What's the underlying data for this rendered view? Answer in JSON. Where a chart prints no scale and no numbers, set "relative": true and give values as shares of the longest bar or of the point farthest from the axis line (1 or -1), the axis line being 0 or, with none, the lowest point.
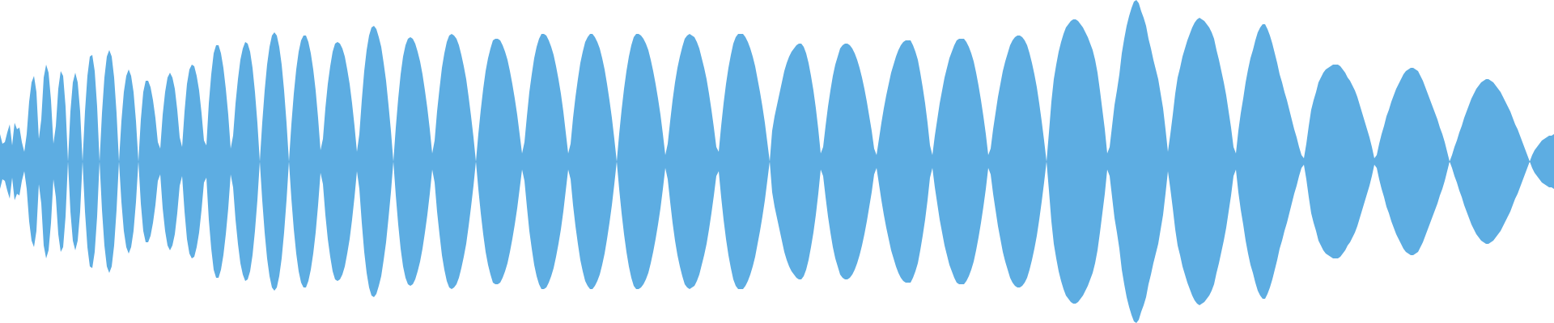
{
  "chart_data": {
    "type": "area",
    "relative": true,
    "categories": [
      null,
      null,
      null,
      null,
      null,
      null,
      null,
      null,
      null,
      null,
      null,
      null,
      null,
      null,
      null,
      null,
      null,
      null,
      null,
      null,
      null,
      null,
      null,
      null,
      null,
      null,
      null,
      null,
      null,
      null,
      null,
      null,
      null,
      null,
      null,
      null,
      null,
      null,
      null,
      null,
      null,
      null,
      null,
      null,
      null,
      null,
      null,
      null,
      null,
      null,
      null,
      null,
      null,
      null,
      null,
      null,
      null,
      null,
      null,
      null,
      null,
      null,
      null,
      null,
      null,
      null,
      null,
      null,
      null,
      null,
      null,
      null,
      null,
      null,
      null,
      null,
      null,
      null,
      null,
      null,
      null,
      null,
      null,
      null,
      null,
      null,
      null,
      null,
      null,
      null,
      null,
      null,
      null,
      null,
      null,
      null,
      null,
      null,
      null,
      null,
      null,
      null,
      null,
      null,
      null,
      null,
      null,
      null,
      null,
      null,
      null,
      null,
      null,
      null,
      null,
      null,
      null,
      null,
      null,
      null,
      null,
      null,
      null,
      null,
      null,
      null,
      null,
      null,
      null,
      null,
      null,
      null,
      null,
      null,
      null,
      null,
      null,
      null,
      null,
      null,
      null,
      null,
      null,
      null,
      null,
      null,
      null,
      null,
      null,
      null,
      null,
      null,
      null,
      null,
      null,
      null,
      null,
      null,
      null,
      null,
      null,
      null,
      null,
      null,
      null,
      null,
      null,
      null,
      null,
      null,
      null,
      null,
      null,
      null,
      null,
      null,
      null,
      null,
      null,
      null,
      null,
      null,
      null,
      null,
      null,
      null,
      null,
      null,
      null,
      null,
      null,
      null,
      null,
      null,
      null,
      null,
      null,
      null,
      null,
      null,
      null,
      null,
      null,
      null,
      null,
      null,
      null,
      null,
      null,
      null,
      null,
      null,
      null,
      null,
      null,
      null,
      null,
      null,
      null,
      null,
      null,
      null,
      null,
      null,
      null,
      null,
      null,
      null,
      null,
      null,
      null,
      null,
      null,
      null,
      null,
      null,
      null,
      null,
      null,
      null,
      null,
      null,
      null,
      null,
      null,
      null,
      null,
      null,
      null,
      null,
      null,
      null,
      null,
      null,
      null,
      null,
      null,
      null,
      null,
      null,
      null,
      null,
      null,
      null,
      null,
      null,
      null,
      null,
      null,
      null,
      null,
      null,
      null,
      null,
      null,
      null,
      null,
      null,
      null,
      null,
      null,
      null,
      null,
      null,
      null,
      null,
      null,
      null,
      null,
      null,
      null,
      null,
      null,
      null,
      null,
      null,
      null,
      null,
      null,
      null,
      null,
      null,
      null,
      null,
      null,
      null,
      null,
      null,
      null,
      null,
      null,
      null,
      null,
      null,
      null,
      null,
      null,
      null,
      null,
      null,
      null,
      null,
      null,
      null,
      null,
      null,
      null,
      null,
      null,
      null,
      null,
      null,
      null,
      null,
      null,
      null,
      null,
      null,
      null,
      null,
      null,
      null,
      null,
      null,
      null,
      null,
      null,
      null,
      null,
      null,
      null,
      null,
      null,
      null,
      null,
      null,
      null,
      null,
      null,
      null,
      null,
      null,
      null,
      null,
      null,
      null,
      null,
      null,
      null,
      null,
      null,
      null,
      null,
      null,
      null,
      null,
      null,
      null,
      null,
      null,
      null,
      null,
      null,
      null,
      null,
      null,
      null,
      null,
      null,
      null,
      null,
      null,
      null,
      null,
      null,
      null,
      null,
      null,
      null,
      null,
      null,
      null,
      null,
      null,
      null,
      null,
      null,
      null,
      null,
      null,
      null,
      null,
      null,
      null,
      null,
      null,
      null,
      null,
      null,
      null,
      null,
      null,
      null,
      null,
      null,
      null,
      null,
      null,
      null,
      null,
      null,
      null,
      null,
      null,
      null,
      null,
      null,
      null,
      null,
      null,
      null,
      null,
      null,
      null,
      null,
      null,
      null,
      null,
      null,
      null,
      null,
      null,
      null,
      null,
      null,
      null,
      null,
      null,
      null,
      null,
      null,
      null,
      null,
      null,
      null,
      null,
      null,
      null,
      null,
      null,
      null,
      null,
      null,
      null,
      null,
      null,
      null,
      null,
      null,
      null,
      null,
      null,
      null,
      null,
      null,
      null,
      null,
      null,
      null,
      null,
      null,
      null,
      null,
      null,
      null,
      null,
      null,
      null,
      null,
      null,
      null,
      null,
      null,
      null,
      null,
      null,
      null,
      null,
      null,
      null,
      null,
      null,
      null,
      null,
      null,
      null,
      null,
      null,
      null,
      null,
      null,
      null,
      null,
      null,
      null,
      null,
      null,
      null,
      null,
      null,
      null,
      null,
      null,
      null,
      null,
      null,
      null,
      null,
      null,
      null,
      null,
      null,
      null,
      null,
      null,
      null,
      null,
      null,
      null,
      null,
      null,
      null,
      null,
      null,
      null,
      null,
      null,
      null,
      null,
      null,
      null,
      null,
      null,
      null,
      null,
      null,
      null,
      null,
      null,
      null,
      null,
      null,
      null,
      null,
      null,
      null,
      null,
      null,
      null,
      null,
      null,
      null,
      null,
      null,
      null,
      null,
      null,
      null,
      null,
      null,
      null,
      null,
      null,
      null,
      null,
      null,
      null,
      null,
      null,
      null,
      null,
      null,
      null,
      null,
      null,
      null,
      null,
      null,
      null,
      null,
      null,
      null,
      null,
      null,
      null,
      null,
      null,
      null,
      null,
      null,
      null,
      null,
      null,
      null,
      null,
      null,
      null,
      null,
      null,
      null,
      null,
      null,
      null,
      null,
      null,
      null,
      null,
      null,
      null,
      null,
      null
    ],
    "series": [
      {
        "color": "#5dade2",
        "values": [
          0.17,
          0.11,
          0.12,
          0.18,
          0.23,
          0.1,
          0.24,
          0.2,
          0.21,
          0.12,
          0.06,
          0.17,
          0.37,
          0.49,
          0.53,
          0.43,
          0.14,
          0.26,
          0.52,
          0.6,
          0.55,
          0.38,
          0.11,
          0.22,
          0.45,
          0.56,
          0.53,
          0.34,
          0,
          0.31,
          0.49,
          0.55,
          0.49,
          0.31,
          0,
          0.31,
          0.53,
          0.65,
          0.66,
          0.56,
          0.34,
          0,
          0.3,
          0.52,
          0.65,
          0.69,
          0.65,
          0.52,
          0.3,
          0,
          0.25,
          0.43,
          0.53,
          0.57,
          0.53,
          0.43,
          0.25,
          0,
          0.26,
          0.43,
          0.5,
          0.5,
          0.46,
          0.38,
          0.27,
          0.12,
          0.08,
          0.29,
          0.43,
          0.52,
          0.55,
          0.52,
          0.45,
          0.32,
          0.15,
          0.09,
          0.31,
          0.48,
          0.57,
          0.6,
          0.59,
          0.53,
          0.44,
          0.3,
          0.13,
          0.1,
          0.36,
          0.54,
          0.67,
          0.72,
          0.72,
          0.67,
          0.58,
          0.45,
          0.29,
          0.08,
          0.16,
          0.36,
          0.51,
          0.63,
          0.7,
          0.74,
          0.73,
          0.68,
          0.58,
          0.43,
          0.24,
          0,
          0.24,
          0.44,
          0.6,
          0.71,
          0.78,
          0.8,
          0.78,
          0.71,
          0.6,
          0.44,
          0.24,
          0,
          0.23,
          0.42,
          0.57,
          0.68,
          0.75,
          0.78,
          0.78,
          0.74,
          0.67,
          0.57,
          0.44,
          0.27,
          0.07,
          0.14,
          0.33,
          0.48,
          0.59,
          0.68,
          0.73,
          0.74,
          0.73,
          0.7,
          0.65,
          0.57,
          0.48,
          0.36,
          0.22,
          0.06,
          0.17,
          0.38,
          0.56,
          0.69,
          0.78,
          0.83,
          0.84,
          0.82,
          0.77,
          0.71,
          0.61,
          0.5,
          0.35,
          0.19,
          0,
          0.21,
          0.39,
          0.54,
          0.65,
          0.72,
          0.76,
          0.77,
          0.76,
          0.73,
          0.68,
          0.62,
          0.54,
          0.44,
          0.33,
          0.2,
          0.05,
          0.13,
          0.31,
          0.45,
          0.58,
          0.67,
          0.74,
          0.78,
          0.79,
          0.78,
          0.76,
          0.72,
          0.66,
          0.59,
          0.51,
          0.4,
          0.28,
          0.15,
          0,
          0.17,
          0.32,
          0.45,
          0.56,
          0.64,
          0.7,
          0.75,
          0.76,
          0.76,
          0.75,
          0.72,
          0.68,
          0.63,
          0.56,
          0.48,
          0.39,
          0.29,
          0.17,
          0.05,
          0.12,
          0.28,
          0.43,
          0.54,
          0.64,
          0.71,
          0.76,
          0.79,
          0.79,
          0.78,
          0.75,
          0.71,
          0.66,
          0.59,
          0.51,
          0.42,
          0.31,
          0.18,
          0.05,
          0.11,
          0.27,
          0.4,
          0.51,
          0.61,
          0.68,
          0.74,
          0.77,
          0.79,
          0.79,
          0.77,
          0.74,
          0.7,
          0.64,
          0.57,
          0.48,
          0.38,
          0.27,
          0.14,
          0,
          0.17,
          0.32,
          0.45,
          0.56,
          0.65,
          0.72,
          0.77,
          0.79,
          0.79,
          0.78,
          0.76,
          0.73,
          0.69,
          0.63,
          0.56,
          0.48,
          0.39,
          0.29,
          0.17,
          0.04,
          0.11,
          0.25,
          0.38,
          0.49,
          0.58,
          0.65,
          0.71,
          0.76,
          0.78,
          0.79,
          0.78,
          0.77,
          0.74,
          0.7,
          0.64,
          0.58,
          0.51,
          0.42,
          0.32,
          0.21,
          0.09,
          0.06,
          0.22,
          0.36,
          0.48,
          0.58,
          0.66,
          0.73,
          0.77,
          0.79,
          0.79,
          0.79,
          0.77,
          0.74,
          0.7,
          0.65,
          0.59,
          0.51,
          0.43,
          0.34,
          0.24,
          0.12,
          0,
          0.19,
          0.28,
          0.35,
          0.42,
          0.49,
          0.56,
          0.61,
          0.65,
          0.68,
          0.7,
          0.72,
          0.73,
          0.73,
          0.71,
          0.67,
          0.61,
          0.53,
          0.44,
          0.33,
          0.2,
          0.05,
          0.09,
          0.22,
          0.34,
          0.44,
          0.53,
          0.6,
          0.65,
          0.7,
          0.72,
          0.73,
          0.73,
          0.72,
          0.7,
          0.67,
          0.63,
          0.58,
          0.52,
          0.45,
          0.37,
          0.28,
          0.19,
          0.08,
          0.04,
          0.14,
          0.24,
          0.33,
          0.41,
          0.48,
          0.55,
          0.6,
          0.65,
          0.69,
          0.72,
          0.74,
          0.75,
          0.75,
          0.75,
          0.72,
          0.68,
          0.63,
          0.55,
          0.46,
          0.36,
          0.24,
          0.1,
          0.04,
          0.16,
          0.26,
          0.36,
          0.44,
          0.52,
          0.58,
          0.64,
          0.68,
          0.72,
          0.75,
          0.76,
          0.76,
          0.76,
          0.74,
          0.71,
          0.67,
          0.62,
          0.55,
          0.47,
          0.38,
          0.28,
          0.17,
          0.04,
          0.08,
          0.2,
          0.3,
          0.4,
          0.48,
          0.56,
          0.62,
          0.67,
          0.72,
          0.75,
          0.77,
          0.78,
          0.78,
          0.77,
          0.75,
          0.72,
          0.67,
          0.61,
          0.54,
          0.46,
          0.36,
          0.25,
          0.13,
          0,
          0.18,
          0.37,
          0.51,
          0.6,
          0.68,
          0.74,
          0.79,
          0.83,
          0.85,
          0.87,
          0.88,
          0.88,
          0.87,
          0.85,
          0.83,
          0.8,
          0.77,
          0.73,
          0.69,
          0.63,
          0.55,
          0.44,
          0.32,
          0.2,
          0.05,
          0.09,
          0.22,
          0.35,
          0.44,
          0.54,
          0.67,
          0.76,
          0.84,
          0.9,
          0.95,
          0.99,
          1,
          0.98,
          0.93,
          0.89,
          0.84,
          0.76,
          0.7,
          0.63,
          0.57,
          0.51,
          0.42,
          0.33,
          0.2,
          0.06,
          0.17,
          0.29,
          0.42,
          0.52,
          0.58,
          0.65,
          0.7,
          0.75,
          0.79,
          0.83,
          0.86,
          0.88,
          0.89,
          0.88,
          0.87,
          0.85,
          0.83,
          0.8,
          0.76,
          0.69,
          0.63,
          0.56,
          0.49,
          0.41,
          0.31,
          0.21,
          0.09,
          0.05,
          0.19,
          0.3,
          0.39,
          0.49,
          0.57,
          0.64,
          0.69,
          0.75,
          0.8,
          0.83,
          0.85,
          0.85,
          0.82,
          0.78,
          0.73,
          0.67,
          0.61,
          0.54,
          0.49,
          0.43,
          0.38,
          0.32,
          0.26,
          0.2,
          0.15,
          0.09,
          0.04,
          0.02,
          0.11,
          0.22,
          0.32,
          0.38,
          0.43,
          0.49,
          0.52,
          0.55,
          0.57,
          0.58,
          0.59,
          0.6,
          0.6,
          0.6,
          0.59,
          0.57,
          0.55,
          0.52,
          0.5,
          0.47,
          0.44,
          0.4,
          0.35,
          0.3,
          0.25,
          0.2,
          0.15,
          0.09,
          0.02,
          0.04,
          0.11,
          0.17,
          0.22,
          0.28,
          0.32,
          0.37,
          0.41,
          0.45,
          0.48,
          0.51,
          0.54,
          0.56,
          0.57,
          0.58,
          0.58,
          0.57,
          0.56,
          0.53,
          0.5,
          0.46,
          0.42,
          0.38,
          0.34,
          0.3,
          0.26,
          0.21,
          0.17,
          0.12,
          0.06,
          0,
          0.04,
          0.09,
          0.13,
          0.18,
          0.22,
          0.27,
          0.31,
          0.35,
          0.39,
          0.42,
          0.45,
          0.47,
          0.49,
          0.5,
          0.51,
          0.51,
          0.5,
          0.49,
          0.47,
          0.45,
          0.43,
          0.4,
          0.37,
          0.34,
          0.31,
          0.27,
          0.23,
          0.2,
          0.16,
          0.12,
          0.08,
          0.04,
          0,
          0.04,
          0.07,
          0.09,
          0.11,
          0.13,
          0.14,
          0.15,
          0.16,
          0.16,
          0.17
        ]
      },
      {
        "color": "#5dade2",
        "values": [
          -0.17,
          -0.11,
          -0.12,
          -0.18,
          -0.23,
          -0.1,
          -0.24,
          -0.2,
          -0.21,
          -0.12,
          -0.06,
          -0.17,
          -0.37,
          -0.49,
          -0.53,
          -0.43,
          -0.14,
          -0.26,
          -0.52,
          -0.6,
          -0.55,
          -0.38,
          -0.11,
          -0.22,
          -0.45,
          -0.56,
          -0.53,
          -0.34,
          0,
          -0.31,
          -0.49,
          -0.55,
          -0.49,
          -0.31,
          0,
          -0.31,
          -0.53,
          -0.65,
          -0.66,
          -0.56,
          -0.34,
          0,
          -0.3,
          -0.52,
          -0.65,
          -0.69,
          -0.65,
          -0.52,
          -0.3,
          0,
          -0.25,
          -0.43,
          -0.53,
          -0.57,
          -0.53,
          -0.43,
          -0.25,
          0,
          -0.26,
          -0.43,
          -0.5,
          -0.5,
          -0.46,
          -0.38,
          -0.27,
          -0.12,
          -0.08,
          -0.29,
          -0.43,
          -0.52,
          -0.55,
          -0.52,
          -0.45,
          -0.32,
          -0.15,
          -0.09,
          -0.31,
          -0.48,
          -0.57,
          -0.6,
          -0.59,
          -0.53,
          -0.44,
          -0.3,
          -0.13,
          -0.1,
          -0.36,
          -0.54,
          -0.67,
          -0.72,
          -0.72,
          -0.67,
          -0.58,
          -0.45,
          -0.29,
          -0.08,
          -0.16,
          -0.36,
          -0.51,
          -0.63,
          -0.7,
          -0.74,
          -0.73,
          -0.68,
          -0.58,
          -0.43,
          -0.24,
          0,
          -0.24,
          -0.44,
          -0.6,
          -0.71,
          -0.78,
          -0.8,
          -0.78,
          -0.71,
          -0.6,
          -0.44,
          -0.24,
          0,
          -0.23,
          -0.42,
          -0.57,
          -0.68,
          -0.75,
          -0.78,
          -0.78,
          -0.74,
          -0.67,
          -0.57,
          -0.44,
          -0.27,
          -0.07,
          -0.14,
          -0.33,
          -0.48,
          -0.59,
          -0.68,
          -0.73,
          -0.74,
          -0.73,
          -0.7,
          -0.65,
          -0.57,
          -0.48,
          -0.36,
          -0.22,
          -0.06,
          -0.17,
          -0.38,
          -0.56,
          -0.69,
          -0.78,
          -0.83,
          -0.84,
          -0.82,
          -0.77,
          -0.71,
          -0.61,
          -0.5,
          -0.35,
          -0.19,
          0,
          -0.21,
          -0.39,
          -0.54,
          -0.65,
          -0.72,
          -0.76,
          -0.77,
          -0.76,
          -0.73,
          -0.68,
          -0.62,
          -0.54,
          -0.44,
          -0.33,
          -0.2,
          -0.05,
          -0.13,
          -0.31,
          -0.45,
          -0.58,
          -0.67,
          -0.74,
          -0.78,
          -0.79,
          -0.78,
          -0.76,
          -0.72,
          -0.66,
          -0.59,
          -0.51,
          -0.4,
          -0.28,
          -0.15,
          0,
          -0.17,
          -0.32,
          -0.45,
          -0.56,
          -0.64,
          -0.7,
          -0.75,
          -0.76,
          -0.76,
          -0.75,
          -0.72,
          -0.68,
          -0.63,
          -0.56,
          -0.48,
          -0.39,
          -0.29,
          -0.17,
          -0.05,
          -0.12,
          -0.28,
          -0.43,
          -0.54,
          -0.64,
          -0.71,
          -0.76,
          -0.79,
          -0.79,
          -0.78,
          -0.75,
          -0.71,
          -0.66,
          -0.59,
          -0.51,
          -0.42,
          -0.31,
          -0.18,
          -0.05,
          -0.11,
          -0.27,
          -0.4,
          -0.51,
          -0.61,
          -0.68,
          -0.74,
          -0.77,
          -0.79,
          -0.79,
          -0.77,
          -0.74,
          -0.7,
          -0.64,
          -0.57,
          -0.48,
          -0.38,
          -0.27,
          -0.14,
          0,
          -0.17,
          -0.32,
          -0.45,
          -0.56,
          -0.65,
          -0.72,
          -0.77,
          -0.79,
          -0.79,
          -0.78,
          -0.76,
          -0.73,
          -0.69,
          -0.63,
          -0.56,
          -0.48,
          -0.39,
          -0.29,
          -0.17,
          -0.04,
          -0.11,
          -0.25,
          -0.38,
          -0.49,
          -0.58,
          -0.65,
          -0.71,
          -0.76,
          -0.78,
          -0.79,
          -0.78,
          -0.77,
          -0.74,
          -0.7,
          -0.64,
          -0.58,
          -0.51,
          -0.42,
          -0.32,
          -0.21,
          -0.09,
          -0.06,
          -0.22,
          -0.36,
          -0.48,
          -0.58,
          -0.66,
          -0.73,
          -0.77,
          -0.79,
          -0.79,
          -0.79,
          -0.77,
          -0.74,
          -0.7,
          -0.65,
          -0.59,
          -0.51,
          -0.43,
          -0.34,
          -0.24,
          -0.12,
          0,
          -0.19,
          -0.28,
          -0.35,
          -0.42,
          -0.49,
          -0.56,
          -0.61,
          -0.65,
          -0.68,
          -0.7,
          -0.72,
          -0.73,
          -0.73,
          -0.71,
          -0.67,
          -0.61,
          -0.53,
          -0.44,
          -0.33,
          -0.2,
          -0.05,
          -0.09,
          -0.22,
          -0.34,
          -0.44,
          -0.53,
          -0.6,
          -0.65,
          -0.7,
          -0.72,
          -0.73,
          -0.73,
          -0.72,
          -0.7,
          -0.67,
          -0.63,
          -0.58,
          -0.52,
          -0.45,
          -0.37,
          -0.28,
          -0.19,
          -0.08,
          -0.04,
          -0.14,
          -0.24,
          -0.33,
          -0.41,
          -0.48,
          -0.55,
          -0.6,
          -0.65,
          -0.69,
          -0.72,
          -0.74,
          -0.75,
          -0.75,
          -0.75,
          -0.72,
          -0.68,
          -0.63,
          -0.55,
          -0.46,
          -0.36,
          -0.24,
          -0.1,
          -0.04,
          -0.16,
          -0.26,
          -0.36,
          -0.44,
          -0.52,
          -0.58,
          -0.64,
          -0.68,
          -0.72,
          -0.75,
          -0.76,
          -0.76,
          -0.76,
          -0.74,
          -0.71,
          -0.67,
          -0.62,
          -0.55,
          -0.47,
          -0.38,
          -0.28,
          -0.17,
          -0.04,
          -0.08,
          -0.2,
          -0.3,
          -0.4,
          -0.48,
          -0.56,
          -0.62,
          -0.67,
          -0.72,
          -0.75,
          -0.77,
          -0.78,
          -0.78,
          -0.77,
          -0.75,
          -0.72,
          -0.67,
          -0.61,
          -0.54,
          -0.46,
          -0.36,
          -0.25,
          -0.13,
          0,
          -0.18,
          -0.37,
          -0.51,
          -0.6,
          -0.68,
          -0.74,
          -0.79,
          -0.83,
          -0.85,
          -0.87,
          -0.88,
          -0.88,
          -0.87,
          -0.85,
          -0.83,
          -0.8,
          -0.77,
          -0.73,
          -0.69,
          -0.63,
          -0.55,
          -0.44,
          -0.32,
          -0.2,
          -0.05,
          -0.09,
          -0.22,
          -0.35,
          -0.44,
          -0.54,
          -0.67,
          -0.76,
          -0.84,
          -0.9,
          -0.95,
          -0.99,
          -1,
          -0.98,
          -0.93,
          -0.89,
          -0.84,
          -0.76,
          -0.7,
          -0.63,
          -0.57,
          -0.51,
          -0.42,
          -0.33,
          -0.2,
          -0.06,
          -0.17,
          -0.29,
          -0.42,
          -0.52,
          -0.58,
          -0.65,
          -0.7,
          -0.75,
          -0.79,
          -0.83,
          -0.86,
          -0.88,
          -0.89,
          -0.88,
          -0.87,
          -0.85,
          -0.83,
          -0.8,
          -0.76,
          -0.69,
          -0.63,
          -0.56,
          -0.49,
          -0.41,
          -0.31,
          -0.21,
          -0.09,
          -0.05,
          -0.19,
          -0.3,
          -0.39,
          -0.49,
          -0.57,
          -0.64,
          -0.69,
          -0.75,
          -0.8,
          -0.83,
          -0.85,
          -0.85,
          -0.82,
          -0.78,
          -0.73,
          -0.67,
          -0.61,
          -0.54,
          -0.49,
          -0.43,
          -0.38,
          -0.32,
          -0.26,
          -0.2,
          -0.15,
          -0.09,
          -0.04,
          -0.02,
          -0.11,
          -0.22,
          -0.32,
          -0.38,
          -0.43,
          -0.49,
          -0.52,
          -0.55,
          -0.57,
          -0.58,
          -0.59,
          -0.6,
          -0.6,
          -0.6,
          -0.59,
          -0.57,
          -0.55,
          -0.52,
          -0.5,
          -0.47,
          -0.44,
          -0.4,
          -0.35,
          -0.3,
          -0.25,
          -0.2,
          -0.15,
          -0.09,
          -0.02,
          -0.04,
          -0.11,
          -0.17,
          -0.22,
          -0.28,
          -0.32,
          -0.37,
          -0.41,
          -0.45,
          -0.48,
          -0.51,
          -0.54,
          -0.56,
          -0.57,
          -0.58,
          -0.58,
          -0.57,
          -0.56,
          -0.53,
          -0.5,
          -0.46,
          -0.42,
          -0.38,
          -0.34,
          -0.3,
          -0.26,
          -0.21,
          -0.17,
          -0.12,
          -0.06,
          0,
          -0.04,
          -0.09,
          -0.13,
          -0.18,
          -0.22,
          -0.27,
          -0.31,
          -0.35,
          -0.39,
          -0.42,
          -0.45,
          -0.47,
          -0.49,
          -0.5,
          -0.51,
          -0.51,
          -0.5,
          -0.49,
          -0.47,
          -0.45,
          -0.43,
          -0.4,
          -0.37,
          -0.34,
          -0.31,
          -0.27,
          -0.23,
          -0.2,
          -0.16,
          -0.12,
          -0.08,
          -0.04,
          0,
          -0.04,
          -0.07,
          -0.09,
          -0.11,
          -0.13,
          -0.14,
          -0.15,
          -0.16,
          -0.16,
          -0.17
        ]
      }
    ]
  }
}
